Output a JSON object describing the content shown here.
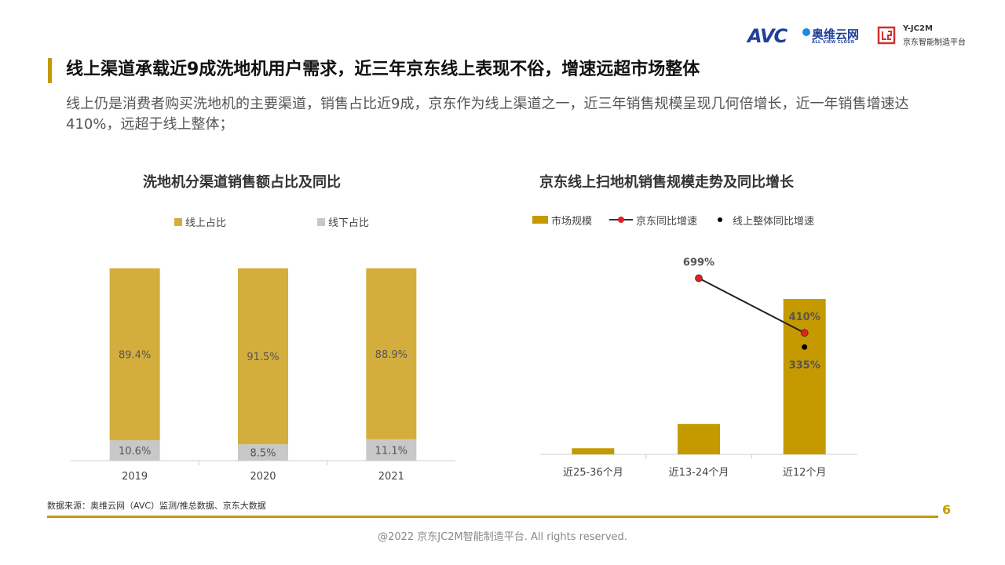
{
  "logos": {
    "avc_mark": "AVC",
    "avc_cn": "奥维云网",
    "avc_en": "ALL VIEW CLOUD",
    "jc_code": "Y-JC2M",
    "jc_cn": "京东智能制造平台"
  },
  "headline": "线上渠道承载近9成洗地机用户需求，近三年京东线上表现不俗，增速远超市场整体",
  "subtext": "线上仍是消费者购买洗地机的主要渠道，销售占比近9成，京东作为线上渠道之一，近三年销售规模呈现几何倍增长，近一年销售增速达410%，远超于线上整体；",
  "colors": {
    "accent": "#c49a00",
    "online": "#d4ae3c",
    "offline": "#c8c8c8",
    "market": "#c49a00",
    "jd_line": "#e02020",
    "overall": "#000000"
  },
  "chart_data": [
    {
      "type": "bar",
      "stacked": true,
      "title": "洗地机分渠道销售额占比及同比",
      "categories": [
        "2019",
        "2020",
        "2021"
      ],
      "series": [
        {
          "name": "线上占比",
          "values": [
            89.4,
            91.5,
            88.9
          ],
          "labels": [
            "89.4%",
            "91.5%",
            "88.9%"
          ]
        },
        {
          "name": "线下占比",
          "values": [
            10.6,
            8.5,
            11.1
          ],
          "labels": [
            "10.6%",
            "8.5%",
            "11.1%"
          ]
        }
      ],
      "ylim": [
        0,
        100
      ],
      "legend": "top"
    },
    {
      "type": "bar",
      "title": "京东线上扫地机销售规模走势及同比增长",
      "categories": [
        "近25-36个月",
        "近13-24个月",
        "近12个月"
      ],
      "series": [
        {
          "name": "市场规模",
          "values": [
            0.2,
            1.0,
            5.1
          ]
        },
        {
          "name": "京东同比增速",
          "values": [
            null,
            699,
            410
          ],
          "labels": [
            "",
            "699%",
            "410%"
          ]
        },
        {
          "name": "线上整体同比增速",
          "values": [
            null,
            null,
            335
          ],
          "labels": [
            "",
            "",
            "335%"
          ]
        }
      ],
      "legend": "top"
    }
  ],
  "source": "数据来源：奥维云网（AVC）监测/推总数据、京东大数据",
  "page_number": "6",
  "copyright": "@2022 京东JC2M智能制造平台. All rights reserved."
}
